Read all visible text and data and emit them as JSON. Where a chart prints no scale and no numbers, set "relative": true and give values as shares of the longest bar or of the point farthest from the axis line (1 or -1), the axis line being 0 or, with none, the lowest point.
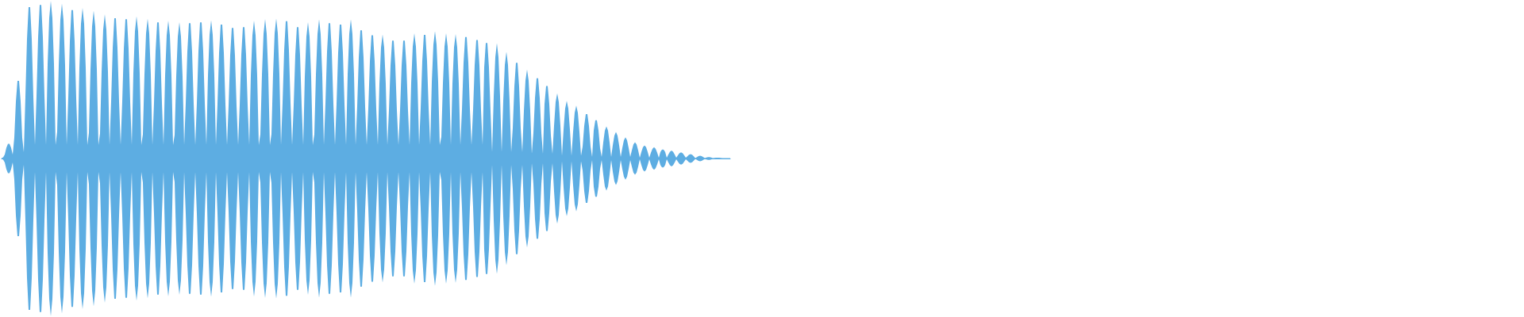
{
  "chart_data": {
    "type": "area",
    "relative": true,
    "categories": [
      null,
      null,
      null,
      null,
      null,
      null,
      null,
      null,
      null,
      null,
      null,
      null,
      null,
      null,
      null,
      null,
      null,
      null,
      null,
      null,
      null,
      null,
      null,
      null,
      null,
      null,
      null,
      null,
      null,
      null,
      null,
      null,
      null,
      null,
      null,
      null,
      null,
      null,
      null,
      null,
      null,
      null,
      null,
      null,
      null,
      null,
      null,
      null,
      null,
      null,
      null,
      null,
      null,
      null,
      null,
      null,
      null,
      null,
      null,
      null,
      null,
      null,
      null,
      null,
      null,
      null,
      null,
      null,
      null,
      null,
      null,
      null,
      null,
      null,
      null,
      null,
      null,
      null,
      null,
      null,
      null,
      null,
      null,
      null,
      null,
      null,
      null,
      null,
      null,
      null,
      null,
      null,
      null,
      null,
      null,
      null,
      null,
      null,
      null,
      null,
      null,
      null,
      null,
      null,
      null,
      null,
      null,
      null,
      null,
      null,
      null,
      null,
      null,
      null,
      null,
      null,
      null,
      null,
      null,
      null,
      null,
      null,
      null,
      null,
      null,
      null,
      null,
      null,
      null,
      null,
      null,
      null,
      null,
      null,
      null,
      null,
      null,
      null,
      null,
      null,
      null,
      null,
      null,
      null,
      null,
      null,
      null,
      null,
      null,
      null,
      null,
      null,
      null,
      null,
      null,
      null,
      null,
      null,
      null,
      null,
      null,
      null,
      null,
      null,
      null,
      null,
      null,
      null,
      null,
      null,
      null,
      null,
      null,
      null,
      null,
      null,
      null,
      null,
      null,
      null,
      null,
      null,
      null,
      null,
      null,
      null,
      null,
      null,
      null,
      null,
      null,
      null,
      null,
      null,
      null,
      null,
      null,
      null,
      null,
      null,
      null,
      null,
      null,
      null,
      null,
      null,
      null,
      null,
      null,
      null,
      null,
      null,
      null,
      null,
      null,
      null,
      null,
      null,
      null,
      null,
      null,
      null,
      null,
      null,
      null,
      null,
      null,
      null,
      null,
      null,
      null,
      null,
      null,
      null,
      null,
      null,
      null,
      null,
      null,
      null,
      null,
      null,
      null,
      null,
      null,
      null,
      null,
      null,
      null,
      null,
      null,
      null,
      null,
      null,
      null,
      null,
      null,
      null,
      null,
      null,
      null,
      null,
      null,
      null,
      null,
      null,
      null,
      null,
      null,
      null,
      null,
      null,
      null,
      null,
      null,
      null,
      null,
      null,
      null,
      null,
      null,
      null,
      null,
      null,
      null,
      null,
      null,
      null,
      null,
      null,
      null,
      null,
      null,
      null,
      null,
      null,
      null,
      null,
      null,
      null,
      null,
      null,
      null,
      null,
      null,
      null,
      null,
      null,
      null,
      null,
      null,
      null,
      null,
      null,
      null,
      null,
      null,
      null,
      null,
      null,
      null,
      null,
      null,
      null,
      null,
      null,
      null,
      null,
      null,
      null,
      null,
      null,
      null,
      null,
      null,
      null,
      null,
      null,
      null,
      null,
      null,
      null,
      null,
      null,
      null,
      null,
      null,
      null,
      null,
      null,
      null,
      null,
      null,
      null,
      null,
      null,
      null,
      null,
      null,
      null,
      null,
      null,
      null,
      null,
      null,
      null,
      null,
      null,
      null,
      null,
      null,
      null,
      null,
      null,
      null,
      null,
      null,
      null,
      null,
      null,
      null,
      null,
      null,
      null,
      null,
      null,
      null,
      null,
      null,
      null,
      null,
      null,
      null,
      null,
      null,
      null,
      null,
      null,
      null,
      null,
      null,
      null,
      null,
      null,
      null,
      null,
      null,
      null,
      null,
      null,
      null,
      null,
      null,
      null,
      null,
      null,
      null,
      null,
      null,
      null,
      null,
      null,
      null,
      null,
      null,
      null,
      null,
      null,
      null,
      null,
      null,
      null,
      null,
      null,
      null,
      null,
      null,
      null,
      null,
      null,
      null,
      null,
      null,
      null,
      null,
      null,
      null,
      null,
      null,
      null,
      null,
      null,
      null,
      null,
      null,
      null,
      null,
      null,
      null,
      null
    ],
    "series": [
      {
        "color": "#5dade2",
        "values": [
          0.003,
          0.008,
          0.025,
          0.068,
          0.093,
          0.093,
          0.068,
          0.025,
          0.132,
          0.36,
          0.492,
          0.492,
          0.36,
          0.132,
          0.04,
          0.391,
          0.757,
          0.96,
          0.96,
          0.757,
          0.391,
          0.085,
          0.396,
          0.767,
          0.973,
          0.973,
          0.767,
          0.396,
          0.085,
          0.598,
          0.89,
          1,
          0.89,
          0.598,
          0.085,
          0.17,
          0.59,
          0.878,
          0.982,
          0.878,
          0.59,
          0.085,
          0.383,
          0.742,
          0.941,
          0.941,
          0.742,
          0.383,
          0.085,
          0.574,
          0.854,
          0.955,
          0.854,
          0.574,
          0.085,
          0.162,
          0.563,
          0.838,
          0.937,
          0.838,
          0.563,
          0.085,
          0.158,
          0.549,
          0.817,
          0.914,
          0.817,
          0.549,
          0.085,
          0.362,
          0.701,
          0.889,
          0.889,
          0.701,
          0.362,
          0.085,
          0.36,
          0.696,
          0.883,
          0.883,
          0.696,
          0.36,
          0.085,
          0.542,
          0.806,
          0.902,
          0.806,
          0.542,
          0.085,
          0.153,
          0.533,
          0.793,
          0.887,
          0.793,
          0.533,
          0.085,
          0.351,
          0.68,
          0.863,
          0.863,
          0.68,
          0.351,
          0.085,
          0.525,
          0.781,
          0.874,
          0.781,
          0.525,
          0.085,
          0.149,
          0.519,
          0.772,
          0.864,
          0.772,
          0.519,
          0.085,
          0.349,
          0.676,
          0.858,
          0.858,
          0.676,
          0.349,
          0.085,
          0.351,
          0.68,
          0.863,
          0.863,
          0.68,
          0.351,
          0.085,
          0.527,
          0.784,
          0.877,
          0.784,
          0.527,
          0.085,
          0.346,
          0.67,
          0.849,
          0.849,
          0.67,
          0.346,
          0.085,
          0.337,
          0.653,
          0.828,
          0.828,
          0.653,
          0.337,
          0.085,
          0.339,
          0.657,
          0.833,
          0.833,
          0.657,
          0.339,
          0.085,
          0.526,
          0.782,
          0.875,
          0.782,
          0.526,
          0.085,
          0.153,
          0.531,
          0.79,
          0.884,
          0.79,
          0.531,
          0.085,
          0.154,
          0.534,
          0.794,
          0.888,
          0.794,
          0.534,
          0.085,
          0.354,
          0.686,
          0.87,
          0.87,
          0.686,
          0.354,
          0.085,
          0.339,
          0.657,
          0.833,
          0.833,
          0.657,
          0.339,
          0.085,
          0.519,
          0.772,
          0.864,
          0.772,
          0.519,
          0.085,
          0.153,
          0.531,
          0.789,
          0.883,
          0.789,
          0.531,
          0.085,
          0.349,
          0.676,
          0.858,
          0.858,
          0.676,
          0.349,
          0.085,
          0.346,
          0.67,
          0.849,
          0.849,
          0.67,
          0.346,
          0.085,
          0.531,
          0.789,
          0.883,
          0.789,
          0.531,
          0.085,
          0.331,
          0.641,
          0.813,
          0.813,
          0.641,
          0.331,
          0.085,
          0.318,
          0.616,
          0.781,
          0.781,
          0.616,
          0.318,
          0.085,
          0.472,
          0.703,
          0.786,
          0.703,
          0.472,
          0.085,
          0.305,
          0.59,
          0.748,
          0.748,
          0.59,
          0.305,
          0.085,
          0.305,
          0.59,
          0.748,
          0.748,
          0.59,
          0.305,
          0.085,
          0.477,
          0.71,
          0.794,
          0.71,
          0.477,
          0.085,
          0.319,
          0.618,
          0.784,
          0.784,
          0.618,
          0.319,
          0.085,
          0.486,
          0.722,
          0.808,
          0.722,
          0.486,
          0.085,
          0.137,
          0.477,
          0.71,
          0.794,
          0.71,
          0.477,
          0.085,
          0.474,
          0.705,
          0.789,
          0.705,
          0.474,
          0.085,
          0.313,
          0.607,
          0.77,
          0.77,
          0.607,
          0.313,
          0.085,
          0.306,
          0.592,
          0.751,
          0.751,
          0.592,
          0.306,
          0.085,
          0.577,
          0.732,
          0.732,
          0.577,
          0.298,
          0.04,
          0.393,
          0.642,
          0.733,
          0.642,
          0.393,
          0.04,
          0.363,
          0.593,
          0.677,
          0.593,
          0.363,
          0.04,
          0.193,
          0.456,
          0.607,
          0.607,
          0.456,
          0.193,
          0.04,
          0.302,
          0.494,
          0.564,
          0.494,
          0.302,
          0.03,
          0.162,
          0.383,
          0.509,
          0.509,
          0.383,
          0.162,
          0.03,
          0.346,
          0.46,
          0.46,
          0.346,
          0.147,
          0.03,
          0.207,
          0.358,
          0.413,
          0.358,
          0.207,
          0.018,
          0.183,
          0.316,
          0.365,
          0.316,
          0.183,
          0.018,
          0.168,
          0.29,
          0.335,
          0.29,
          0.168,
          0.018,
          0.076,
          0.206,
          0.282,
          0.282,
          0.206,
          0.076,
          0.01,
          0.178,
          0.243,
          0.243,
          0.178,
          0.065,
          0.01,
          0.102,
          0.177,
          0.204,
          0.177,
          0.102,
          0.01,
          0.084,
          0.145,
          0.168,
          0.145,
          0.084,
          0.01,
          0.067,
          0.116,
          0.134,
          0.116,
          0.067,
          0.01,
          0.052,
          0.089,
          0.103,
          0.089,
          0.052,
          0.005,
          0.042,
          0.072,
          0.083,
          0.072,
          0.042,
          0.005,
          0.036,
          0.061,
          0.071,
          0.061,
          0.036,
          0.005,
          0.041,
          0.056,
          0.056,
          0.041,
          0.005,
          0.025,
          0.043,
          0.05,
          0.043,
          0.025,
          0.005,
          0.02,
          0.034,
          0.039,
          0.034,
          0.02,
          0.005,
          0.014,
          0.024,
          0.028,
          0.024,
          0.014,
          0.003,
          0.009,
          0.015,
          0.017,
          0.015,
          0.009,
          0.003,
          0.006,
          0.009,
          0.009,
          0.006,
          0.003,
          0.004,
          0.005,
          0.005,
          0.005,
          0.004,
          0.003,
          0.003,
          0.003,
          0.003,
          0.003,
          0.003
        ]
      },
      {
        "color": "#5dade2",
        "values": [
          -0.003,
          -0.008,
          -0.025,
          -0.068,
          -0.093,
          -0.093,
          -0.068,
          -0.025,
          -0.132,
          -0.36,
          -0.492,
          -0.492,
          -0.36,
          -0.132,
          -0.04,
          -0.391,
          -0.757,
          -0.96,
          -0.96,
          -0.757,
          -0.391,
          -0.085,
          -0.396,
          -0.767,
          -0.973,
          -0.973,
          -0.767,
          -0.396,
          -0.085,
          -0.598,
          -0.89,
          -1,
          -0.89,
          -0.598,
          -0.085,
          -0.17,
          -0.59,
          -0.878,
          -0.982,
          -0.878,
          -0.59,
          -0.085,
          -0.383,
          -0.742,
          -0.941,
          -0.941,
          -0.742,
          -0.383,
          -0.085,
          -0.574,
          -0.854,
          -0.955,
          -0.854,
          -0.574,
          -0.085,
          -0.162,
          -0.563,
          -0.838,
          -0.937,
          -0.838,
          -0.563,
          -0.085,
          -0.158,
          -0.549,
          -0.817,
          -0.914,
          -0.817,
          -0.549,
          -0.085,
          -0.362,
          -0.701,
          -0.889,
          -0.889,
          -0.701,
          -0.362,
          -0.085,
          -0.36,
          -0.696,
          -0.883,
          -0.883,
          -0.696,
          -0.36,
          -0.085,
          -0.542,
          -0.806,
          -0.902,
          -0.806,
          -0.542,
          -0.085,
          -0.153,
          -0.533,
          -0.793,
          -0.887,
          -0.793,
          -0.533,
          -0.085,
          -0.351,
          -0.68,
          -0.863,
          -0.863,
          -0.68,
          -0.351,
          -0.085,
          -0.525,
          -0.781,
          -0.874,
          -0.781,
          -0.525,
          -0.085,
          -0.149,
          -0.519,
          -0.772,
          -0.864,
          -0.772,
          -0.519,
          -0.085,
          -0.349,
          -0.676,
          -0.858,
          -0.858,
          -0.676,
          -0.349,
          -0.085,
          -0.351,
          -0.68,
          -0.863,
          -0.863,
          -0.68,
          -0.351,
          -0.085,
          -0.527,
          -0.784,
          -0.877,
          -0.784,
          -0.527,
          -0.085,
          -0.346,
          -0.67,
          -0.849,
          -0.849,
          -0.67,
          -0.346,
          -0.085,
          -0.337,
          -0.653,
          -0.828,
          -0.828,
          -0.653,
          -0.337,
          -0.085,
          -0.339,
          -0.657,
          -0.833,
          -0.833,
          -0.657,
          -0.339,
          -0.085,
          -0.526,
          -0.782,
          -0.875,
          -0.782,
          -0.526,
          -0.085,
          -0.153,
          -0.531,
          -0.79,
          -0.884,
          -0.79,
          -0.531,
          -0.085,
          -0.154,
          -0.534,
          -0.794,
          -0.888,
          -0.794,
          -0.534,
          -0.085,
          -0.354,
          -0.686,
          -0.87,
          -0.87,
          -0.686,
          -0.354,
          -0.085,
          -0.339,
          -0.657,
          -0.833,
          -0.833,
          -0.657,
          -0.339,
          -0.085,
          -0.519,
          -0.772,
          -0.864,
          -0.772,
          -0.519,
          -0.085,
          -0.153,
          -0.531,
          -0.789,
          -0.883,
          -0.789,
          -0.531,
          -0.085,
          -0.349,
          -0.676,
          -0.858,
          -0.858,
          -0.676,
          -0.349,
          -0.085,
          -0.346,
          -0.67,
          -0.849,
          -0.849,
          -0.67,
          -0.346,
          -0.085,
          -0.531,
          -0.789,
          -0.883,
          -0.789,
          -0.531,
          -0.085,
          -0.331,
          -0.641,
          -0.813,
          -0.813,
          -0.641,
          -0.331,
          -0.085,
          -0.318,
          -0.616,
          -0.781,
          -0.781,
          -0.616,
          -0.318,
          -0.085,
          -0.472,
          -0.703,
          -0.786,
          -0.703,
          -0.472,
          -0.085,
          -0.305,
          -0.59,
          -0.748,
          -0.748,
          -0.59,
          -0.305,
          -0.085,
          -0.305,
          -0.59,
          -0.748,
          -0.748,
          -0.59,
          -0.305,
          -0.085,
          -0.477,
          -0.71,
          -0.794,
          -0.71,
          -0.477,
          -0.085,
          -0.319,
          -0.618,
          -0.784,
          -0.784,
          -0.618,
          -0.319,
          -0.085,
          -0.486,
          -0.722,
          -0.808,
          -0.722,
          -0.486,
          -0.085,
          -0.137,
          -0.477,
          -0.71,
          -0.794,
          -0.71,
          -0.477,
          -0.085,
          -0.474,
          -0.705,
          -0.789,
          -0.705,
          -0.474,
          -0.085,
          -0.313,
          -0.607,
          -0.77,
          -0.77,
          -0.607,
          -0.313,
          -0.085,
          -0.306,
          -0.592,
          -0.751,
          -0.751,
          -0.592,
          -0.306,
          -0.085,
          -0.577,
          -0.732,
          -0.732,
          -0.577,
          -0.298,
          -0.04,
          -0.393,
          -0.642,
          -0.733,
          -0.642,
          -0.393,
          -0.04,
          -0.363,
          -0.593,
          -0.677,
          -0.593,
          -0.363,
          -0.04,
          -0.193,
          -0.456,
          -0.607,
          -0.607,
          -0.456,
          -0.193,
          -0.04,
          -0.302,
          -0.494,
          -0.564,
          -0.494,
          -0.302,
          -0.03,
          -0.162,
          -0.383,
          -0.509,
          -0.509,
          -0.383,
          -0.162,
          -0.03,
          -0.346,
          -0.46,
          -0.46,
          -0.346,
          -0.147,
          -0.03,
          -0.207,
          -0.358,
          -0.413,
          -0.358,
          -0.207,
          -0.018,
          -0.183,
          -0.316,
          -0.365,
          -0.316,
          -0.183,
          -0.018,
          -0.168,
          -0.29,
          -0.335,
          -0.29,
          -0.168,
          -0.018,
          -0.076,
          -0.206,
          -0.282,
          -0.282,
          -0.206,
          -0.076,
          -0.01,
          -0.178,
          -0.243,
          -0.243,
          -0.178,
          -0.065,
          -0.01,
          -0.102,
          -0.177,
          -0.204,
          -0.177,
          -0.102,
          -0.01,
          -0.084,
          -0.145,
          -0.168,
          -0.145,
          -0.084,
          -0.01,
          -0.067,
          -0.116,
          -0.134,
          -0.116,
          -0.067,
          -0.01,
          -0.052,
          -0.089,
          -0.103,
          -0.089,
          -0.052,
          -0.005,
          -0.042,
          -0.072,
          -0.083,
          -0.072,
          -0.042,
          -0.005,
          -0.036,
          -0.061,
          -0.071,
          -0.061,
          -0.036,
          -0.005,
          -0.041,
          -0.056,
          -0.056,
          -0.041,
          -0.005,
          -0.025,
          -0.043,
          -0.05,
          -0.043,
          -0.025,
          -0.005,
          -0.02,
          -0.034,
          -0.039,
          -0.034,
          -0.02,
          -0.005,
          -0.014,
          -0.024,
          -0.028,
          -0.024,
          -0.014,
          -0.003,
          -0.009,
          -0.015,
          -0.017,
          -0.015,
          -0.009,
          -0.003,
          -0.006,
          -0.009,
          -0.009,
          -0.006,
          -0.003,
          -0.004,
          -0.005,
          -0.005,
          -0.005,
          -0.004,
          -0.003,
          -0.003,
          -0.003,
          -0.003,
          -0.003,
          -0.003
        ]
      }
    ]
  }
}
